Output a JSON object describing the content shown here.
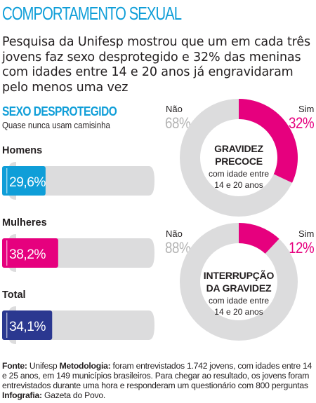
{
  "header": {
    "title": "COMPORTAMENTO SEXUAL",
    "subtitle": "Pesquisa da Unifesp mostrou que um em cada três jovens faz sexo desprotegido e 32% das meninas com idades entre 14 e 20 anos já engravidaram pelo menos uma vez"
  },
  "colors": {
    "accent_blue": "#0f9ed8",
    "accent_magenta": "#e6007e",
    "total_navy": "#2b3890",
    "neutral_gray": "#dcdcdd"
  },
  "chart_data": [
    {
      "type": "bar",
      "title": "SEXO DESPROTEGIDO",
      "subtitle": "Quase nunca usam camisinha",
      "unit": "%",
      "ylim": [
        0,
        100
      ],
      "categories": [
        "Homens",
        "Mulheres",
        "Total"
      ],
      "values": [
        29.6,
        38.2,
        34.1
      ],
      "value_labels": [
        "29,6%",
        "38,2%",
        "34,1%"
      ],
      "bar_colors": [
        "#0f9ed8",
        "#e6007e",
        "#2b3890"
      ]
    },
    {
      "type": "pie",
      "title": "GRAVIDEZ PRECOCE",
      "subtitle": "com idade entre 14 e 20 anos",
      "labels": [
        "Não",
        "Sim"
      ],
      "values": [
        68,
        32
      ],
      "value_labels": [
        "68%",
        "32%"
      ],
      "colors": [
        "#dcdcdd",
        "#e6007e"
      ]
    },
    {
      "type": "pie",
      "title": "INTERRUPÇÃO DA GRAVIDEZ",
      "subtitle": "com idade entre 14 e 20 anos",
      "labels": [
        "Não",
        "Sim"
      ],
      "values": [
        88,
        12
      ],
      "value_labels": [
        "88%",
        "12%"
      ],
      "colors": [
        "#dcdcdd",
        "#e6007e"
      ]
    }
  ],
  "donut_titles": {
    "pregnancy_line1": "GRAVIDEZ",
    "pregnancy_line2": "PRECOCE",
    "abortion_line1": "INTERRUPÇÃO",
    "abortion_line2": "DA GRAVIDEZ",
    "age_line1": "com idade entre",
    "age_line2": "14 e 20 anos"
  },
  "footer": {
    "source_label": "Fonte:",
    "source_text": " Unifesp ",
    "method_label": "Metodologia:",
    "method_text": " foram entrevistados 1.742 jovens, com idades entre 14 e 25 anos, em 149 municípios brasileiros. Para chegar ao resultado, os jovens foram entrevistados durante uma hora e responderam um questionário com 800 perguntas ",
    "info_label": "Infografia:",
    "info_text": " Gazeta do Povo."
  }
}
